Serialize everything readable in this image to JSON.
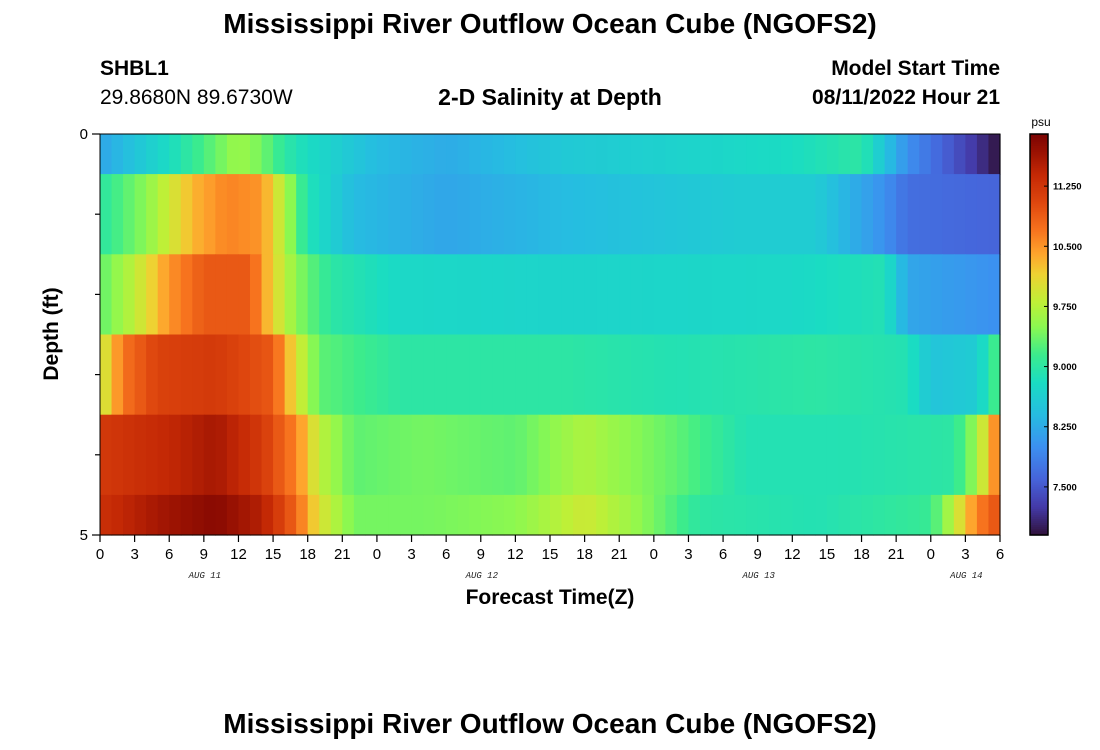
{
  "header": {
    "title": "Mississippi River Outflow Ocean Cube (NGOFS2)",
    "station_id": "SHBL1",
    "station_coords": "29.8680N  89.6730W",
    "subtitle": "2-D Salinity at Depth",
    "start_label": "Model Start Time",
    "start_value": "08/11/2022 Hour 21"
  },
  "footer": {
    "title": "Mississippi River Outflow Ocean Cube (NGOFS2)"
  },
  "chart_data": {
    "type": "heatmap",
    "title": "2-D Salinity at Depth",
    "xlabel": "Forecast Time(Z)",
    "ylabel": "Depth (ft)",
    "y_tick_labels": [
      "0",
      "5"
    ],
    "ylim": [
      0,
      5
    ],
    "x_tick_labels": [
      "0",
      "3",
      "6",
      "9",
      "12",
      "15",
      "18",
      "21",
      "0",
      "3",
      "6",
      "9",
      "12",
      "15",
      "18",
      "21",
      "0",
      "3",
      "6",
      "9",
      "12",
      "15",
      "18",
      "21",
      "0",
      "3",
      "6"
    ],
    "x_day_labels": [
      {
        "label": "AUG 11",
        "hour_index": 3
      },
      {
        "label": "AUG 12",
        "hour_index": 11
      },
      {
        "label": "AUG 13",
        "hour_index": 19
      },
      {
        "label": "AUG 14",
        "hour_index": 25
      }
    ],
    "hours_total": 78,
    "colorbar": {
      "unit": "psu",
      "min": 6.9,
      "max": 11.9,
      "ticks": [
        "11.250",
        "10.500",
        "9.750",
        "9.000",
        "8.250",
        "7.500"
      ],
      "tick_values": [
        11.25,
        10.5,
        9.75,
        9.0,
        8.25,
        7.5
      ]
    },
    "layers": [
      {
        "depth_top": 0.0,
        "depth_bottom": 0.5,
        "knots": [
          [
            0,
            8.2
          ],
          [
            6,
            8.8
          ],
          [
            9,
            9.2
          ],
          [
            12,
            9.6
          ],
          [
            14,
            9.4
          ],
          [
            16,
            9.0
          ],
          [
            18,
            8.8
          ],
          [
            24,
            8.4
          ],
          [
            30,
            8.25
          ],
          [
            40,
            8.55
          ],
          [
            60,
            8.8
          ],
          [
            66,
            9.0
          ],
          [
            70,
            8.0
          ],
          [
            76,
            7.2
          ],
          [
            78,
            6.9
          ]
        ]
      },
      {
        "depth_top": 0.5,
        "depth_bottom": 1.5,
        "knots": [
          [
            0,
            9.0
          ],
          [
            4,
            9.5
          ],
          [
            8,
            10.3
          ],
          [
            11,
            10.6
          ],
          [
            14,
            10.5
          ],
          [
            16,
            9.7
          ],
          [
            18,
            8.9
          ],
          [
            22,
            8.4
          ],
          [
            30,
            8.2
          ],
          [
            40,
            8.4
          ],
          [
            55,
            8.6
          ],
          [
            62,
            8.6
          ],
          [
            68,
            8.0
          ],
          [
            70,
            7.7
          ],
          [
            78,
            7.6
          ]
        ]
      },
      {
        "depth_top": 1.5,
        "depth_bottom": 2.5,
        "knots": [
          [
            0,
            9.3
          ],
          [
            3,
            9.8
          ],
          [
            6,
            10.5
          ],
          [
            9,
            10.9
          ],
          [
            13,
            10.9
          ],
          [
            15,
            10.1
          ],
          [
            17,
            9.5
          ],
          [
            20,
            9.0
          ],
          [
            26,
            8.75
          ],
          [
            40,
            8.7
          ],
          [
            60,
            8.75
          ],
          [
            68,
            8.9
          ],
          [
            70,
            8.2
          ],
          [
            78,
            8.0
          ]
        ]
      },
      {
        "depth_top": 2.5,
        "depth_bottom": 3.5,
        "knots": [
          [
            0,
            9.8
          ],
          [
            2,
            10.7
          ],
          [
            5,
            11.1
          ],
          [
            10,
            11.2
          ],
          [
            15,
            10.9
          ],
          [
            17,
            10.0
          ],
          [
            19,
            9.3
          ],
          [
            26,
            9.0
          ],
          [
            40,
            9.0
          ],
          [
            50,
            8.9
          ],
          [
            62,
            9.0
          ],
          [
            70,
            8.9
          ],
          [
            72,
            8.5
          ],
          [
            76,
            8.6
          ],
          [
            78,
            9.3
          ]
        ]
      },
      {
        "depth_top": 3.5,
        "depth_bottom": 4.5,
        "knots": [
          [
            0,
            11.2
          ],
          [
            6,
            11.4
          ],
          [
            10,
            11.6
          ],
          [
            14,
            11.2
          ],
          [
            17,
            10.6
          ],
          [
            19,
            9.8
          ],
          [
            22,
            9.3
          ],
          [
            28,
            9.4
          ],
          [
            36,
            9.3
          ],
          [
            42,
            9.7
          ],
          [
            50,
            9.3
          ],
          [
            56,
            8.9
          ],
          [
            64,
            8.9
          ],
          [
            74,
            9.0
          ],
          [
            76,
            9.6
          ],
          [
            78,
            10.8
          ]
        ]
      },
      {
        "depth_top": 4.5,
        "depth_bottom": 5.0,
        "knots": [
          [
            0,
            11.3
          ],
          [
            5,
            11.6
          ],
          [
            10,
            11.8
          ],
          [
            14,
            11.5
          ],
          [
            17,
            10.8
          ],
          [
            19,
            10.0
          ],
          [
            22,
            9.4
          ],
          [
            28,
            9.4
          ],
          [
            36,
            9.5
          ],
          [
            42,
            9.9
          ],
          [
            46,
            9.6
          ],
          [
            52,
            9.0
          ],
          [
            62,
            8.9
          ],
          [
            72,
            9.1
          ],
          [
            74,
            9.8
          ],
          [
            76,
            10.6
          ],
          [
            78,
            11.0
          ]
        ]
      }
    ]
  }
}
